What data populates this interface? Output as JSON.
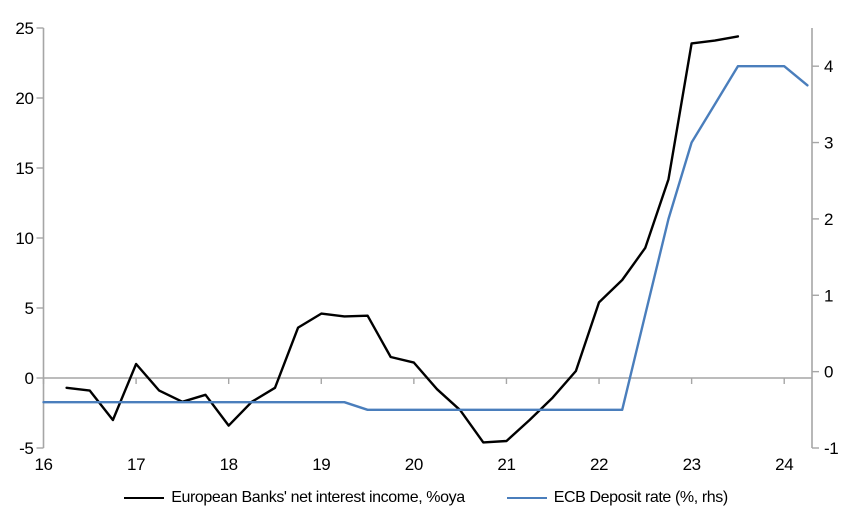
{
  "chart_data": {
    "type": "line",
    "title": "",
    "xlabel": "",
    "ylabel_left": "",
    "ylabel_right": "",
    "xlim": [
      16,
      24.3
    ],
    "left_ylim": [
      -5,
      25
    ],
    "right_ylim": [
      -1,
      4.5
    ],
    "x_ticks": [
      16,
      17,
      18,
      19,
      20,
      21,
      22,
      23,
      24
    ],
    "left_ticks": [
      -5,
      0,
      5,
      10,
      15,
      20,
      25
    ],
    "right_ticks": [
      -1,
      0,
      1,
      2,
      3,
      4
    ],
    "grid": "zero-line-only",
    "legend_position": "bottom-center",
    "series": [
      {
        "name": "European Banks' net interest income, %oya",
        "axis": "left",
        "color": "#000000",
        "line_width": 2.4,
        "x": [
          16.25,
          16.5,
          16.75,
          17.0,
          17.25,
          17.5,
          17.75,
          18.0,
          18.25,
          18.5,
          18.75,
          19.0,
          19.25,
          19.5,
          19.75,
          20.0,
          20.25,
          20.5,
          20.75,
          21.0,
          21.25,
          21.5,
          21.75,
          22.0,
          22.25,
          22.5,
          22.75,
          23.0,
          23.25,
          23.5
        ],
        "values": [
          -0.7,
          -0.9,
          -3.0,
          1.0,
          -0.9,
          -1.7,
          -1.2,
          -3.4,
          -1.7,
          -0.7,
          3.6,
          4.6,
          4.4,
          4.45,
          1.5,
          1.1,
          -0.8,
          -2.3,
          -4.6,
          -4.5,
          -3.0,
          -1.4,
          0.5,
          5.4,
          7.0,
          9.3,
          14.2,
          23.9,
          24.1,
          24.4
        ]
      },
      {
        "name": "ECB Deposit rate (%, rhs)",
        "axis": "right",
        "color": "#4a7ebc",
        "line_width": 2.4,
        "x": [
          16.0,
          16.25,
          16.5,
          16.75,
          17.0,
          17.25,
          17.5,
          17.75,
          18.0,
          18.25,
          18.5,
          18.75,
          19.0,
          19.25,
          19.5,
          19.75,
          20.0,
          20.25,
          20.5,
          20.75,
          21.0,
          21.25,
          21.5,
          21.75,
          22.0,
          22.25,
          22.5,
          22.75,
          23.0,
          23.25,
          23.5,
          23.75,
          24.0,
          24.25
        ],
        "values": [
          -0.4,
          -0.4,
          -0.4,
          -0.4,
          -0.4,
          -0.4,
          -0.4,
          -0.4,
          -0.4,
          -0.4,
          -0.4,
          -0.4,
          -0.4,
          -0.4,
          -0.5,
          -0.5,
          -0.5,
          -0.5,
          -0.5,
          -0.5,
          -0.5,
          -0.5,
          -0.5,
          -0.5,
          -0.5,
          -0.5,
          0.75,
          2.0,
          3.0,
          3.5,
          4.0,
          4.0,
          4.0,
          3.75
        ]
      }
    ]
  },
  "legend": {
    "items": [
      {
        "label": "European Banks' net interest income, %oya",
        "color": "#000000"
      },
      {
        "label": "ECB Deposit rate (%, rhs)",
        "color": "#4a7ebc"
      }
    ]
  },
  "colors": {
    "background": "#ffffff",
    "axis": "#a6a6a6",
    "zero_line": "#a6a6a6",
    "text": "#000000",
    "black_series": "#000000",
    "blue_series": "#4a7ebc"
  }
}
